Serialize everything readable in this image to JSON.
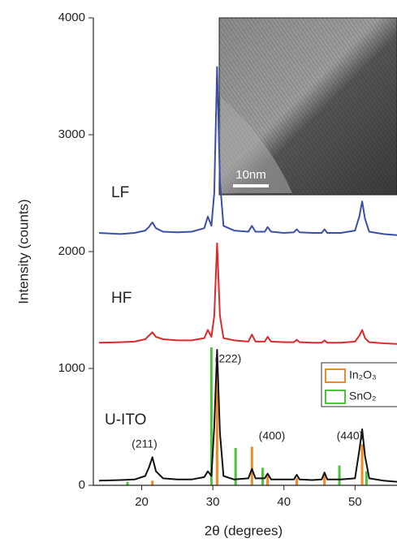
{
  "chart_data": {
    "type": "line",
    "y_label": "Intensity (counts)",
    "x_label": "2θ (degrees)",
    "xlim": [
      13.2,
      55.9
    ],
    "xticks": [
      20,
      30,
      40,
      50
    ],
    "ylim": [
      0,
      4000
    ],
    "yticks": [
      0,
      1000,
      2000,
      3000,
      4000
    ],
    "x": [
      14,
      17,
      19,
      20.5,
      21,
      21.5,
      22,
      23,
      25,
      27,
      28.8,
      29.3,
      29.8,
      30.2,
      30.6,
      31,
      31.5,
      33,
      35,
      35.5,
      36,
      37.3,
      37.7,
      38.2,
      40,
      41.4,
      41.8,
      42.2,
      44,
      45.3,
      45.7,
      46.1,
      48,
      50,
      50.6,
      51,
      51.4,
      52,
      54,
      56
    ],
    "series": [
      {
        "name": "LF",
        "color": "#3b4fa6",
        "values": [
          2160,
          2150,
          2160,
          2180,
          2210,
          2250,
          2200,
          2170,
          2165,
          2170,
          2200,
          2300,
          2220,
          2500,
          3580,
          2600,
          2220,
          2180,
          2170,
          2220,
          2170,
          2170,
          2210,
          2170,
          2160,
          2165,
          2190,
          2165,
          2160,
          2160,
          2190,
          2160,
          2160,
          2180,
          2300,
          2430,
          2280,
          2170,
          2150,
          2140
        ]
      },
      {
        "name": "HF",
        "color": "#e0282b",
        "values": [
          1220,
          1225,
          1230,
          1250,
          1280,
          1310,
          1270,
          1250,
          1240,
          1240,
          1260,
          1330,
          1270,
          1450,
          2070,
          1450,
          1260,
          1240,
          1230,
          1290,
          1230,
          1230,
          1270,
          1230,
          1225,
          1225,
          1245,
          1225,
          1220,
          1220,
          1240,
          1220,
          1220,
          1230,
          1280,
          1330,
          1260,
          1225,
          1215,
          1210
        ]
      },
      {
        "name": "U-ITO",
        "color": "#111111",
        "values": [
          40,
          45,
          50,
          80,
          150,
          240,
          120,
          60,
          50,
          50,
          70,
          120,
          80,
          500,
          1160,
          450,
          80,
          50,
          60,
          140,
          60,
          60,
          100,
          50,
          50,
          50,
          90,
          50,
          45,
          50,
          110,
          50,
          50,
          60,
          300,
          480,
          250,
          60,
          40,
          30
        ]
      }
    ],
    "reference_patterns": [
      {
        "name": "In₂O₃",
        "color": "#f08a24",
        "x": [
          21.5,
          30.6,
          35.5,
          37.7,
          41.8,
          45.7,
          51.0
        ],
        "values": [
          40,
          1000,
          330,
          80,
          60,
          100,
          350
        ]
      },
      {
        "name": "SnO₂",
        "color": "#4cc33a",
        "x": [
          18.0,
          29.8,
          33.2,
          37.0,
          47.8,
          51.6
        ],
        "values": [
          30,
          1180,
          320,
          150,
          170,
          120
        ]
      }
    ],
    "annotations": [
      "(211)",
      "(222)",
      "(400)",
      "(440)"
    ],
    "inset_scale_label": "10nm"
  }
}
